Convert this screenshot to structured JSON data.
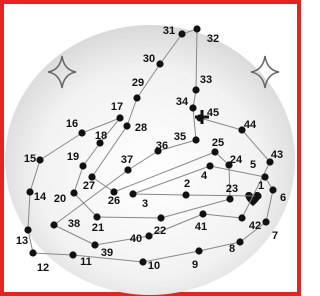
{
  "dots": [
    "1",
    "2",
    "3",
    "4",
    "5",
    "6",
    "7",
    "8",
    "9",
    "10",
    "11",
    "12",
    "13",
    "14",
    "15",
    "16",
    "17",
    "18",
    "19",
    "20",
    "21",
    "22",
    "23",
    "24",
    "25",
    "26",
    "27",
    "28",
    "29",
    "30",
    "31",
    "32",
    "33",
    "34",
    "35",
    "36",
    "37",
    "38",
    "39",
    "40",
    "41",
    "42",
    "43",
    "44",
    "45"
  ]
}
